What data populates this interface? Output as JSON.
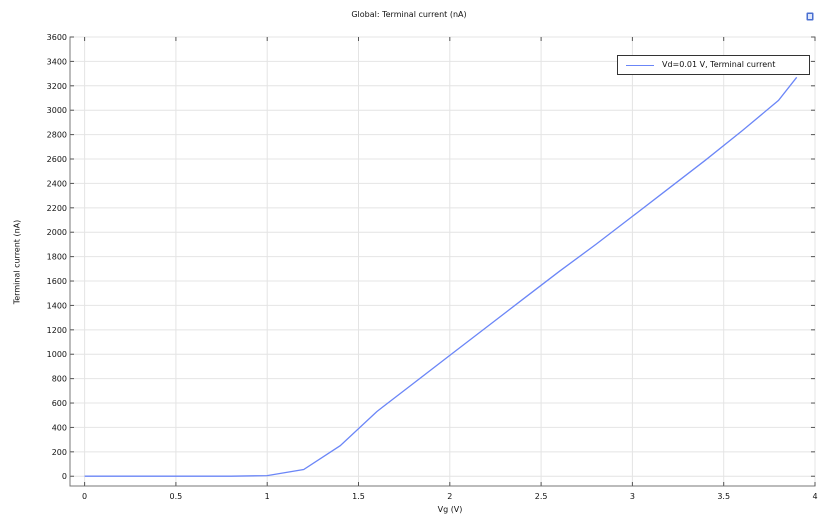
{
  "chart_data": {
    "type": "line",
    "title": "Global: Terminal current (nA)",
    "xlabel": "Vg (V)",
    "ylabel": "Terminal current (nA)",
    "xlim": [
      -0.08,
      4.0
    ],
    "ylim": [
      -80,
      3600
    ],
    "xticks": [
      0,
      0.5,
      1,
      1.5,
      2,
      2.5,
      3,
      3.5,
      4
    ],
    "xtick_labels": [
      "0",
      "0.5",
      "1",
      "1.5",
      "2",
      "2.5",
      "3",
      "3.5",
      "4"
    ],
    "yticks": [
      0,
      200,
      400,
      600,
      800,
      1000,
      1200,
      1400,
      1600,
      1800,
      2000,
      2200,
      2400,
      2600,
      2800,
      3000,
      3200,
      3400,
      3600
    ],
    "ytick_labels": [
      "0",
      "200",
      "400",
      "600",
      "800",
      "1000",
      "1200",
      "1400",
      "1600",
      "1800",
      "2000",
      "2200",
      "2400",
      "2600",
      "2800",
      "3000",
      "3200",
      "3400",
      "3600"
    ],
    "grid": true,
    "legend_position": "top-right",
    "series": [
      {
        "name": "Vd=0.01 V, Terminal current",
        "color": "#6b86f7",
        "x": [
          0,
          0.2,
          0.4,
          0.6,
          0.8,
          1.0,
          1.2,
          1.4,
          1.6,
          1.8,
          2.0,
          2.2,
          2.4,
          2.6,
          2.8,
          3.0,
          3.2,
          3.4,
          3.6,
          3.8,
          3.9
        ],
        "y": [
          0,
          0,
          0,
          0,
          0,
          5,
          55,
          250,
          530,
          760,
          990,
          1220,
          1450,
          1680,
          1900,
          2130,
          2360,
          2590,
          2830,
          3080,
          3270
        ]
      }
    ]
  },
  "icons": {
    "corner": "settings-icon"
  }
}
